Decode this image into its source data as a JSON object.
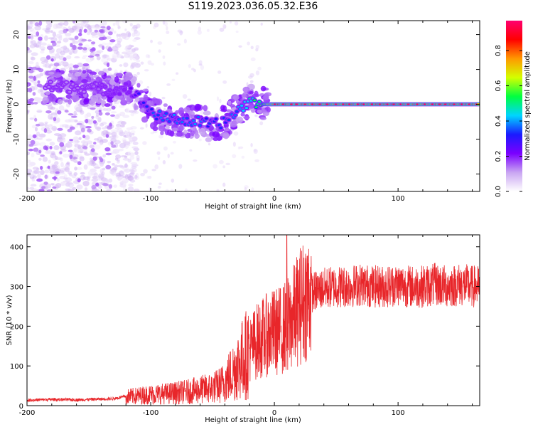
{
  "title": "S119.2023.036.05.32.E36",
  "colors": {
    "snr_line": "#e8262a",
    "colormap": [
      "#ffffff",
      "#c9a6f2",
      "#7b00ff",
      "#1a1aff",
      "#00d5ff",
      "#00ff40",
      "#d4ff00",
      "#ff9900",
      "#ff0000",
      "#ff0070"
    ]
  },
  "chart_data": [
    {
      "type": "heatmap",
      "xlabel": "Height of straight line (km)",
      "ylabel": "Frequency (Hz)",
      "xlim": [
        -200,
        166
      ],
      "ylim": [
        -25,
        24
      ],
      "xticks": [
        -200,
        -100,
        0,
        100
      ],
      "yticks": [
        -20,
        -10,
        0,
        10,
        20
      ],
      "x_tick_labels": [
        "-200",
        "-100",
        "0",
        "100"
      ],
      "y_tick_labels": [
        "-20",
        "-10",
        "0",
        "10",
        "20"
      ],
      "colorbar": {
        "label": "Normalized spectral amplitude",
        "range": [
          0,
          0.97
        ],
        "ticks": [
          0.0,
          0.2,
          0.4,
          0.6,
          0.8
        ],
        "tick_labels": [
          "0.0",
          "0.2",
          "0.4",
          "0.6",
          "0.8"
        ]
      },
      "ridge": [
        {
          "x": -175,
          "freq": 5,
          "amp": 0.15
        },
        {
          "x": -150,
          "freq": 5,
          "amp": 0.15
        },
        {
          "x": -130,
          "freq": 4,
          "amp": 0.2
        },
        {
          "x": -120,
          "freq": 5,
          "amp": 0.2
        },
        {
          "x": -110,
          "freq": 2,
          "amp": 0.3
        },
        {
          "x": -100,
          "freq": -2,
          "amp": 0.35
        },
        {
          "x": -90,
          "freq": -4,
          "amp": 0.4
        },
        {
          "x": -80,
          "freq": -4,
          "amp": 0.4
        },
        {
          "x": -70,
          "freq": -5,
          "amp": 0.4
        },
        {
          "x": -60,
          "freq": -5,
          "amp": 0.4
        },
        {
          "x": -50,
          "freq": -6,
          "amp": 0.35
        },
        {
          "x": -40,
          "freq": -5,
          "amp": 0.35
        },
        {
          "x": -30,
          "freq": -2,
          "amp": 0.4
        },
        {
          "x": -20,
          "freq": 1,
          "amp": 0.5
        },
        {
          "x": -10,
          "freq": 0,
          "amp": 0.6
        },
        {
          "x": 0,
          "freq": 0,
          "amp": 0.85
        },
        {
          "x": 50,
          "freq": 0,
          "amp": 0.85
        },
        {
          "x": 100,
          "freq": 0,
          "amp": 0.85
        },
        {
          "x": 165,
          "freq": 0,
          "amp": 0.85
        }
      ]
    },
    {
      "type": "line",
      "xlabel": "Height of straight line (km)",
      "ylabel": "SNR (10 * v/v)",
      "xlim": [
        -200,
        166
      ],
      "ylim": [
        0,
        430
      ],
      "xticks": [
        -200,
        -100,
        0,
        100
      ],
      "yticks": [
        0,
        100,
        200,
        300,
        400
      ],
      "x_tick_labels": [
        "-200",
        "-100",
        "0",
        "100"
      ],
      "y_tick_labels": [
        "0",
        "100",
        "200",
        "300",
        "400"
      ],
      "series": [
        {
          "x": [
            -200,
            -180,
            -160,
            -140,
            -130,
            -120,
            -110,
            -100,
            -90,
            -80,
            -70,
            -60,
            -50,
            -45,
            -40,
            -35,
            -30,
            -25,
            -20,
            -15,
            -10,
            -5,
            0,
            5,
            10,
            15,
            20,
            25,
            30,
            40,
            50,
            60,
            70,
            80,
            90,
            100,
            110,
            120,
            130,
            140,
            150,
            160,
            166
          ],
          "values": [
            12,
            14,
            13,
            15,
            16,
            22,
            25,
            28,
            30,
            32,
            35,
            40,
            45,
            50,
            60,
            80,
            100,
            120,
            140,
            160,
            170,
            180,
            185,
            190,
            200,
            220,
            250,
            270,
            285,
            295,
            300,
            300,
            305,
            300,
            300,
            305,
            300,
            300,
            305,
            300,
            305,
            300,
            300
          ]
        }
      ],
      "annotations": [
        {
          "x": 10,
          "value": 430,
          "note": "spike"
        },
        {
          "x": 10,
          "value": 90,
          "note": "dip"
        }
      ]
    }
  ]
}
